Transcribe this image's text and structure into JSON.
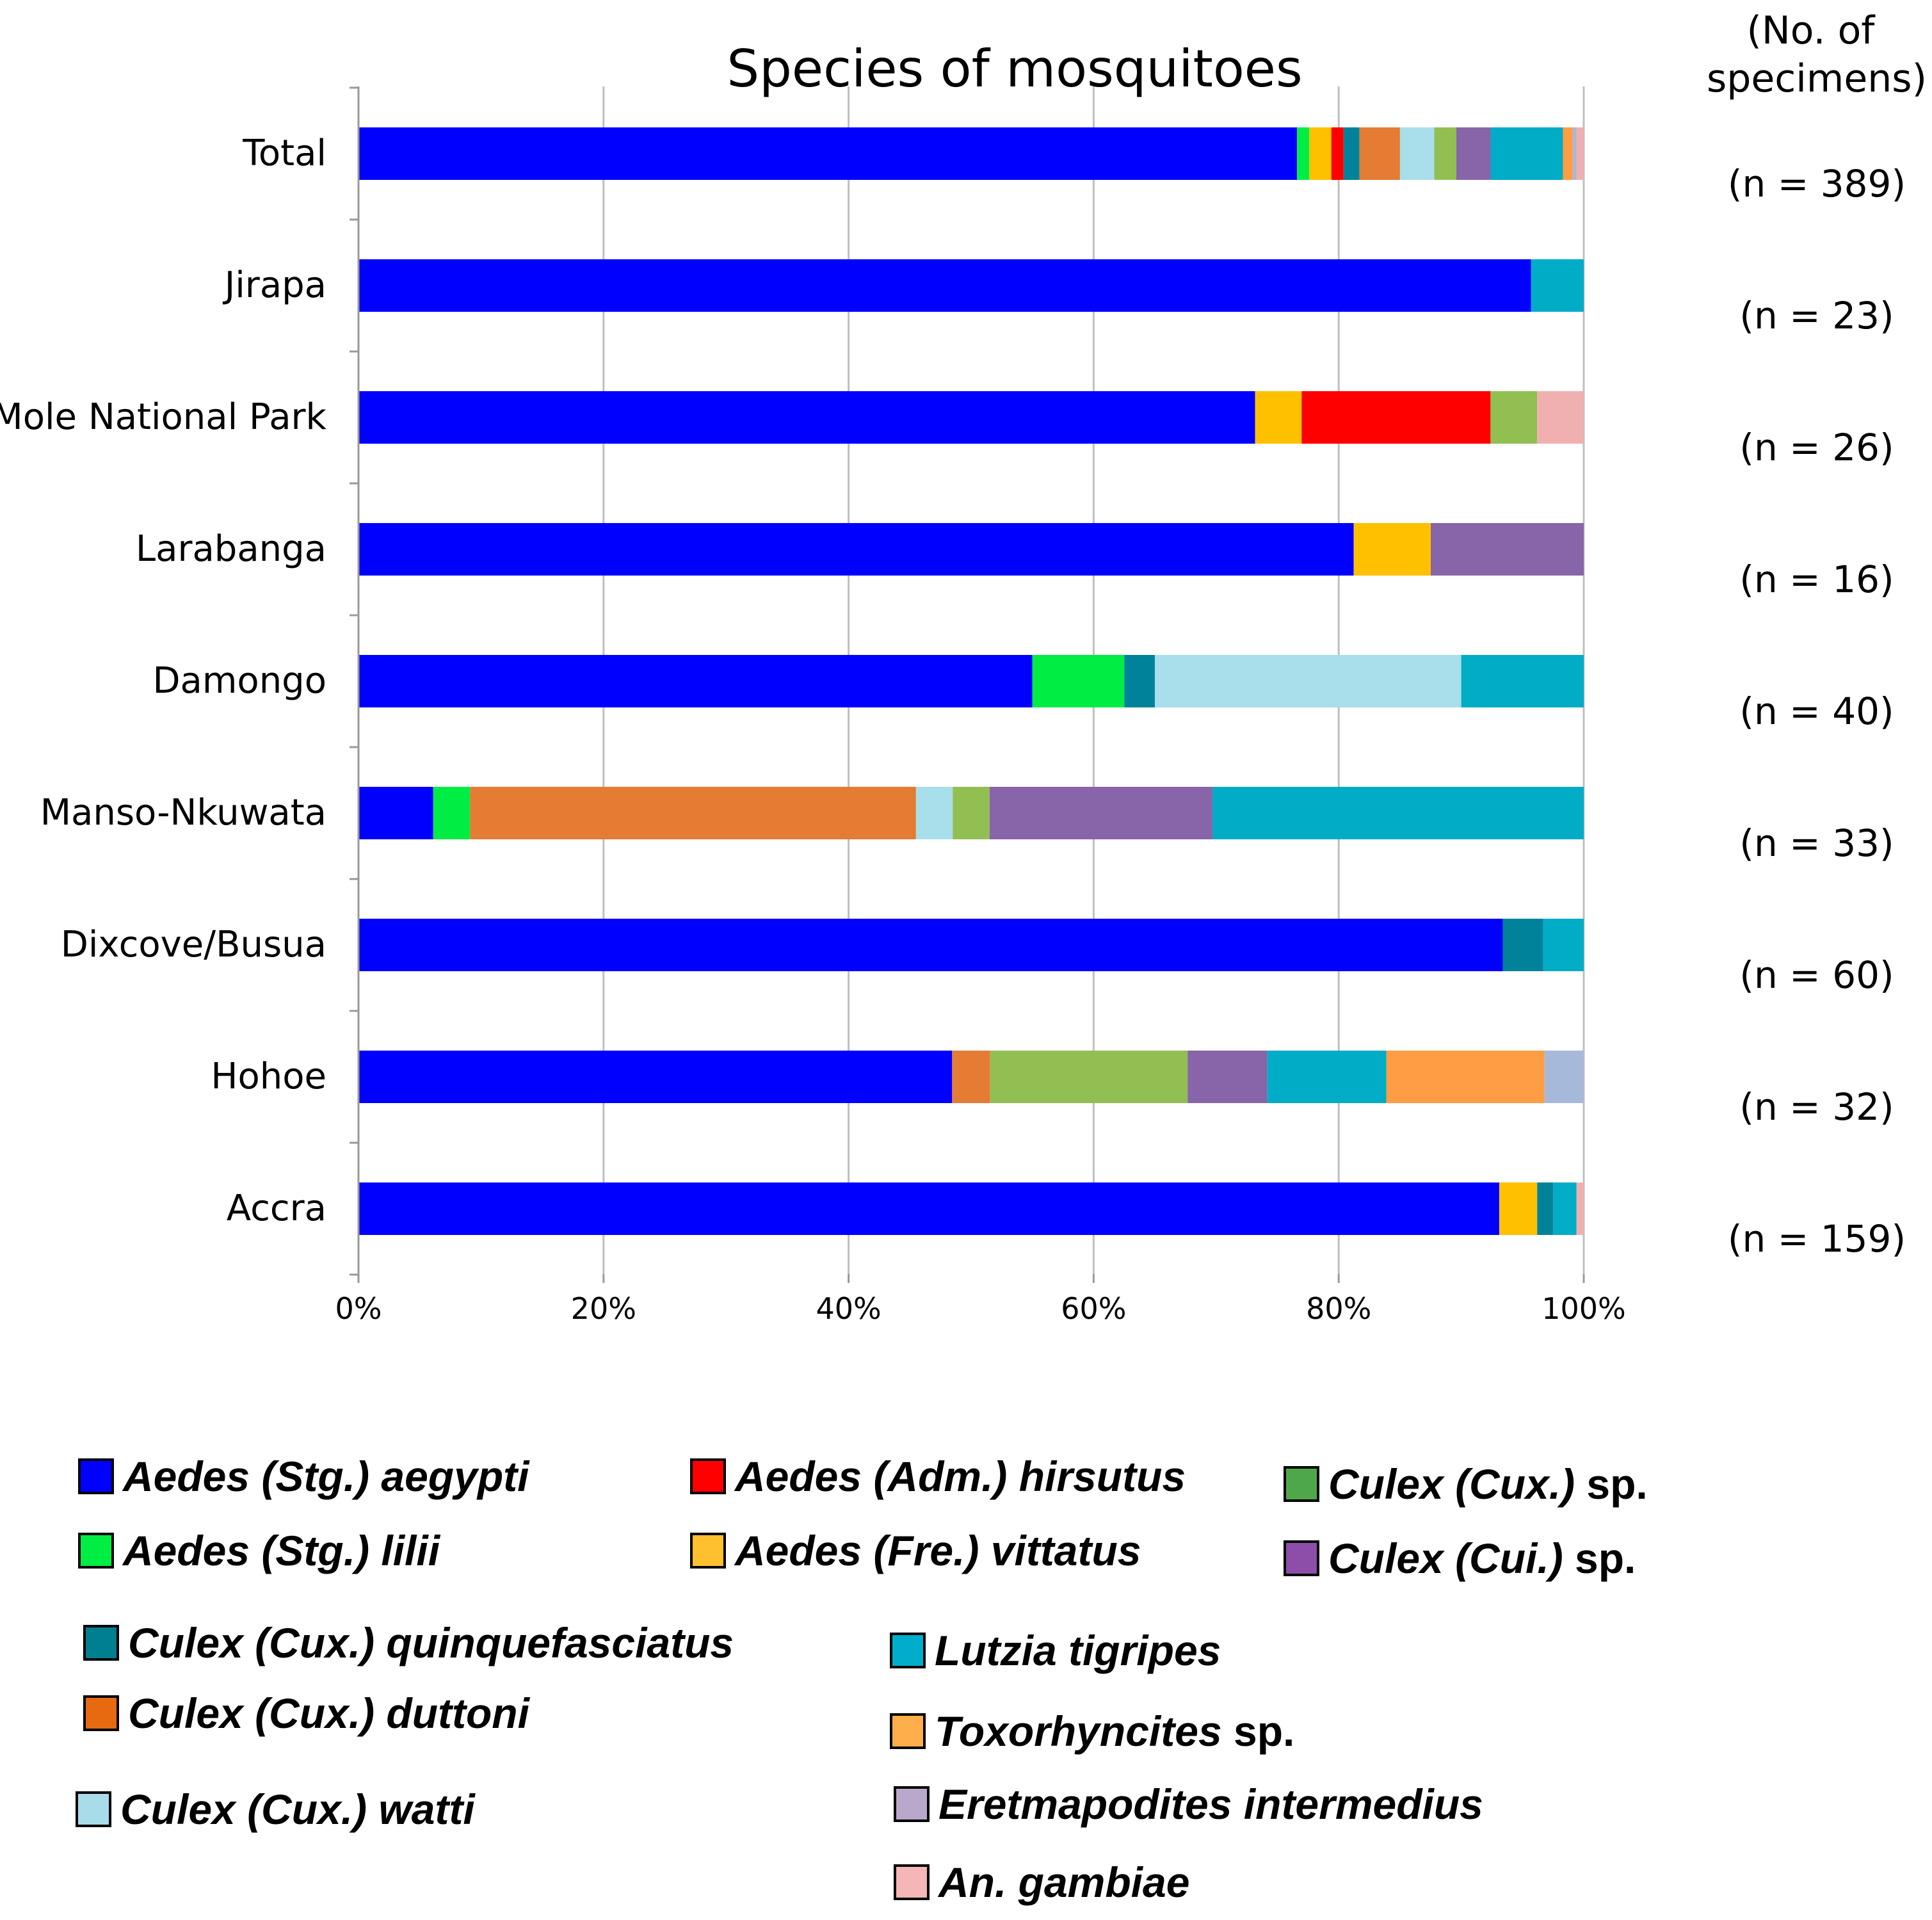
{
  "chart_data": {
    "type": "bar",
    "orientation": "horizontal",
    "stacked": "percent",
    "title": "Species of mosquitoes",
    "specimens_header": "(No. of specimens)",
    "xlabel": "",
    "ylabel": "",
    "xlim": [
      0,
      100
    ],
    "x_ticks": [
      "0%",
      "20%",
      "40%",
      "60%",
      "80%",
      "100%"
    ],
    "grid": true,
    "categories": [
      "Total",
      "Jirapa",
      "Mole National Park",
      "Larabanga",
      "Damongo",
      "Manso-Nkuwata",
      "Dixcove/Busua",
      "Hohoe",
      "Accra"
    ],
    "counts": [
      "(n = 389)",
      "(n = 23)",
      "(n = 26)",
      "(n = 16)",
      "(n = 40)",
      "(n = 33)",
      "(n = 60)",
      "(n = 32)",
      "(n = 159)"
    ],
    "series": [
      {
        "name": "Aedes (Stg.) aegypti",
        "color": "#0000ff",
        "values": [
          76.6,
          95.7,
          73.1,
          81.3,
          55.0,
          6.1,
          93.3,
          48.4,
          93.1
        ]
      },
      {
        "name": "Aedes (Stg.) lilii",
        "color": "#00ee44",
        "values": [
          1.0,
          0,
          0,
          0,
          7.5,
          3.0,
          0,
          0,
          0
        ]
      },
      {
        "name": "Aedes (Fre.) vittatus",
        "color": "#ffc000",
        "values": [
          1.8,
          0,
          3.8,
          6.3,
          0,
          0,
          0,
          0,
          3.1
        ]
      },
      {
        "name": "Aedes (Adm.) hirsutus",
        "color": "#ff0000",
        "values": [
          1.0,
          0,
          15.4,
          0,
          0,
          0,
          0,
          0,
          0
        ]
      },
      {
        "name": "Culex (Cux.) quinquefasciatus",
        "color": "#00829a",
        "values": [
          1.3,
          0,
          0,
          0,
          2.5,
          0,
          3.3,
          0,
          1.3
        ]
      },
      {
        "name": "Culex (Cux.) duttoni",
        "color": "#e47c34",
        "values": [
          3.3,
          0,
          0,
          0,
          0,
          36.4,
          0,
          3.1,
          0
        ]
      },
      {
        "name": "Culex (Cux.) watti",
        "color": "#a8dfea",
        "values": [
          2.8,
          0,
          0,
          0,
          25.0,
          3.0,
          0,
          0,
          0
        ]
      },
      {
        "name": "Culex (Cux.) sp.",
        "color": "#92bf52",
        "values": [
          1.8,
          0,
          3.8,
          0,
          0,
          3.0,
          0,
          16.1,
          0
        ]
      },
      {
        "name": "Culex (Cui.) sp.",
        "color": "#8864a8",
        "values": [
          2.8,
          0,
          0,
          12.5,
          0,
          18.2,
          0,
          6.5,
          0
        ]
      },
      {
        "name": "Lutzia tigripes",
        "color": "#00acc6",
        "values": [
          5.9,
          4.3,
          0,
          0,
          10.0,
          30.3,
          3.3,
          9.7,
          1.9
        ]
      },
      {
        "name": "Toxorhyncites sp.",
        "color": "#ff9d44",
        "values": [
          0.8,
          0,
          0,
          0,
          0,
          0,
          0,
          12.9,
          0
        ]
      },
      {
        "name": "Eretmapodites intermedius",
        "color": "#a7b9db",
        "values": [
          0.3,
          0,
          0,
          0,
          0,
          0,
          0,
          3.2,
          0
        ]
      },
      {
        "name": "An. gambiae",
        "color": "#f0b0b0",
        "values": [
          0.6,
          0,
          3.8,
          0,
          0,
          0,
          0,
          0,
          0.6
        ]
      }
    ]
  },
  "legend": [
    {
      "color": "#0000ff",
      "italic": "Aedes (Stg.) aegypti",
      "suffix": ""
    },
    {
      "color": "#ff0000",
      "italic": "Aedes (Adm.) hirsutus",
      "suffix": ""
    },
    {
      "color": "#4ea84a",
      "italic": "Culex (Cux.)",
      "suffix": " sp."
    },
    {
      "color": "#00ee44",
      "italic": "Aedes (Stg.) lilii",
      "suffix": ""
    },
    {
      "color": "#ffc030",
      "italic": "Aedes (Fre.) vittatus",
      "suffix": ""
    },
    {
      "color": "#8c4ea8",
      "italic": "Culex (Cui.)",
      "suffix": " sp."
    },
    {
      "color": "#007f91",
      "italic": "Culex (Cux.) quinquefasciatus",
      "suffix": ""
    },
    {
      "color": "#00aecb",
      "italic": "Lutzia tigripes",
      "suffix": ""
    },
    {
      "color": "#e86a10",
      "italic": "Culex (Cux.) duttoni",
      "suffix": ""
    },
    {
      "color": "#ffae4c",
      "italic": "Toxorhyncites",
      "suffix": " sp."
    },
    {
      "color": "#a8dce9",
      "italic": "Culex (Cux.) watti",
      "suffix": ""
    },
    {
      "color": "#b9a8cc",
      "italic": "Eretmapodites intermedius",
      "suffix": ""
    },
    {
      "color": "#f4b6b6",
      "italic": "An. gambiae",
      "suffix": ""
    }
  ]
}
